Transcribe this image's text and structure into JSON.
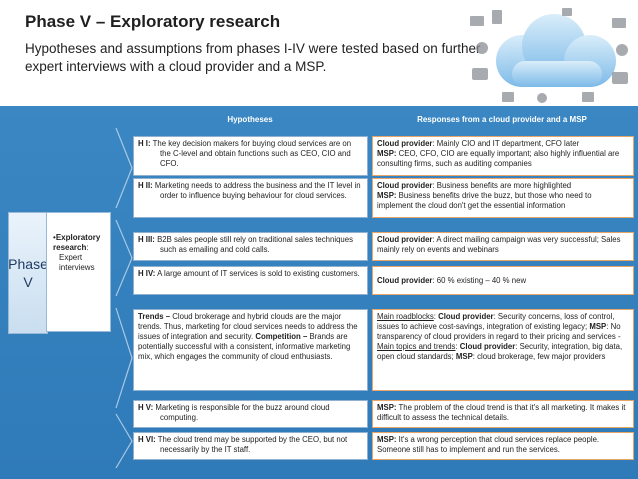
{
  "header": {
    "title": "Phase V – Exploratory research",
    "subtitle": "Hypotheses and assumptions from phases I-IV were tested based on further expert interviews with a cloud provider and a MSP."
  },
  "table": {
    "col_hypotheses": "Hypotheses",
    "col_responses": "Responses from a cloud provider and a MSP"
  },
  "phase": {
    "label_line1": "Phase",
    "label_line2": "V",
    "bullet": "•",
    "desc_bold": "Exploratory research",
    "desc_colon": ":",
    "desc_rest": "Expert interviews"
  },
  "rows": [
    {
      "h_tag": "H I:",
      "h_text": "The key decision makers for buying cloud services are on the C-level and obtain functions such as CEO, CIO and CFO.",
      "r_lines": [
        {
          "b": "Cloud provider",
          "t": ": Mainly CIO and IT department, CFO later"
        },
        {
          "b": "MSP:",
          "t": " CEO, CFO, CIO are equally important; also highly influential are consulting firms, such as auditing companies"
        }
      ]
    },
    {
      "h_tag": "H II:",
      "h_text": "Marketing needs to address the business and the IT level in order to influence buying behaviour for cloud services.",
      "r_lines": [
        {
          "b": "Cloud provider",
          "t": ": Business benefits are more highlighted"
        },
        {
          "b": "MSP:",
          "t": " Business benefits drive the buzz, but those who need to implement the cloud don't get the essential information"
        }
      ]
    },
    {
      "h_tag": "H III:",
      "h_text": "B2B sales people still rely on traditional sales techniques such as emailing and cold calls.",
      "r_lines": [
        {
          "b": "Cloud provider",
          "t": ": A direct mailing campaign was very successful; Sales mainly rely on events and webinars"
        }
      ]
    },
    {
      "h_tag": "H IV:",
      "h_text": "A large amount of IT services is sold to existing customers.",
      "r_lines": [
        {
          "b": "Cloud provider",
          "t": ": 60 % existing – 40 % new"
        }
      ]
    },
    {
      "h_tag": "H V:",
      "h_text": "Marketing is responsible for the buzz around cloud computing.",
      "r_lines": [
        {
          "b": "MSP:",
          "t": " The problem of the cloud trend is that it's all marketing. It makes it difficult to assess the technical details."
        }
      ]
    },
    {
      "h_tag": "H VI:",
      "h_text": "The cloud trend may be supported by the CEO, but not necessarily by the IT staff.",
      "r_lines": [
        {
          "b": "MSP:",
          "t": " It's a wrong perception that cloud services replace people. Someone still has to implement and run the services."
        }
      ]
    }
  ],
  "trends": {
    "b1": "Trends –",
    "t1": " Cloud brokerage and hybrid clouds are the major trends. Thus, marketing for cloud services needs to address the issues of integration and security.",
    "b2": "Competition –",
    "t2": " Brands are potentially successful with a consistent, informative marketing mix, which engages the community of cloud enthusiasts."
  },
  "roadblocks": {
    "u1": "Main roadblocks",
    "s1": ": ",
    "b1": "Cloud provider",
    "t1": ":  Security concerns, loss of control, issues to achieve cost-savings, integration of existing legacy; ",
    "b2": "MSP",
    "t2": ": No transparency of cloud providers in regard to their pricing and services - ",
    "u2": "Main topics and trends",
    "t3": ": ",
    "b3": "Cloud provider",
    "t4": ": Security, integration, big data, open cloud standards; ",
    "b4": "MSP",
    "t5": ": cloud brokerage, few major providers"
  },
  "colors": {
    "panel": "#3a87c3",
    "hypothesis_border": "#8fb0cf",
    "response_border": "#e8a56a"
  }
}
